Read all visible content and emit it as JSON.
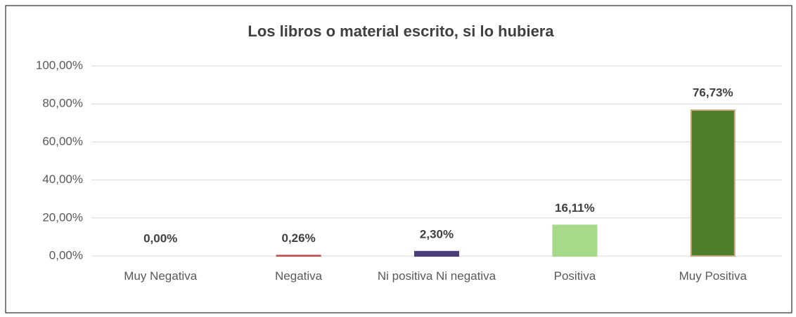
{
  "chart_data": {
    "type": "bar",
    "title": "Los libros o material escrito, si lo hubiera",
    "categories": [
      "Muy Negativa",
      "Negativa",
      "Ni positiva Ni negativa",
      "Positiva",
      "Muy Positiva"
    ],
    "values": [
      0,
      0.26,
      2.3,
      16.11,
      76.73
    ],
    "value_labels": [
      "0,00%",
      "0,26%",
      "2,30%",
      "16,11%",
      "76,73%"
    ],
    "colors": [
      "#4f81bd",
      "#c0504d",
      "#4b3c7a",
      "#a6d98a",
      "#4e7d2b"
    ],
    "ylim": [
      0,
      100
    ],
    "yticks": [
      {
        "value": 0,
        "label": "0,00%"
      },
      {
        "value": 20,
        "label": "20,00%"
      },
      {
        "value": 40,
        "label": "40,00%"
      },
      {
        "value": 60,
        "label": "60,00%"
      },
      {
        "value": 80,
        "label": "80,00%"
      },
      {
        "value": 100,
        "label": "100,00%"
      }
    ],
    "grid": true
  }
}
